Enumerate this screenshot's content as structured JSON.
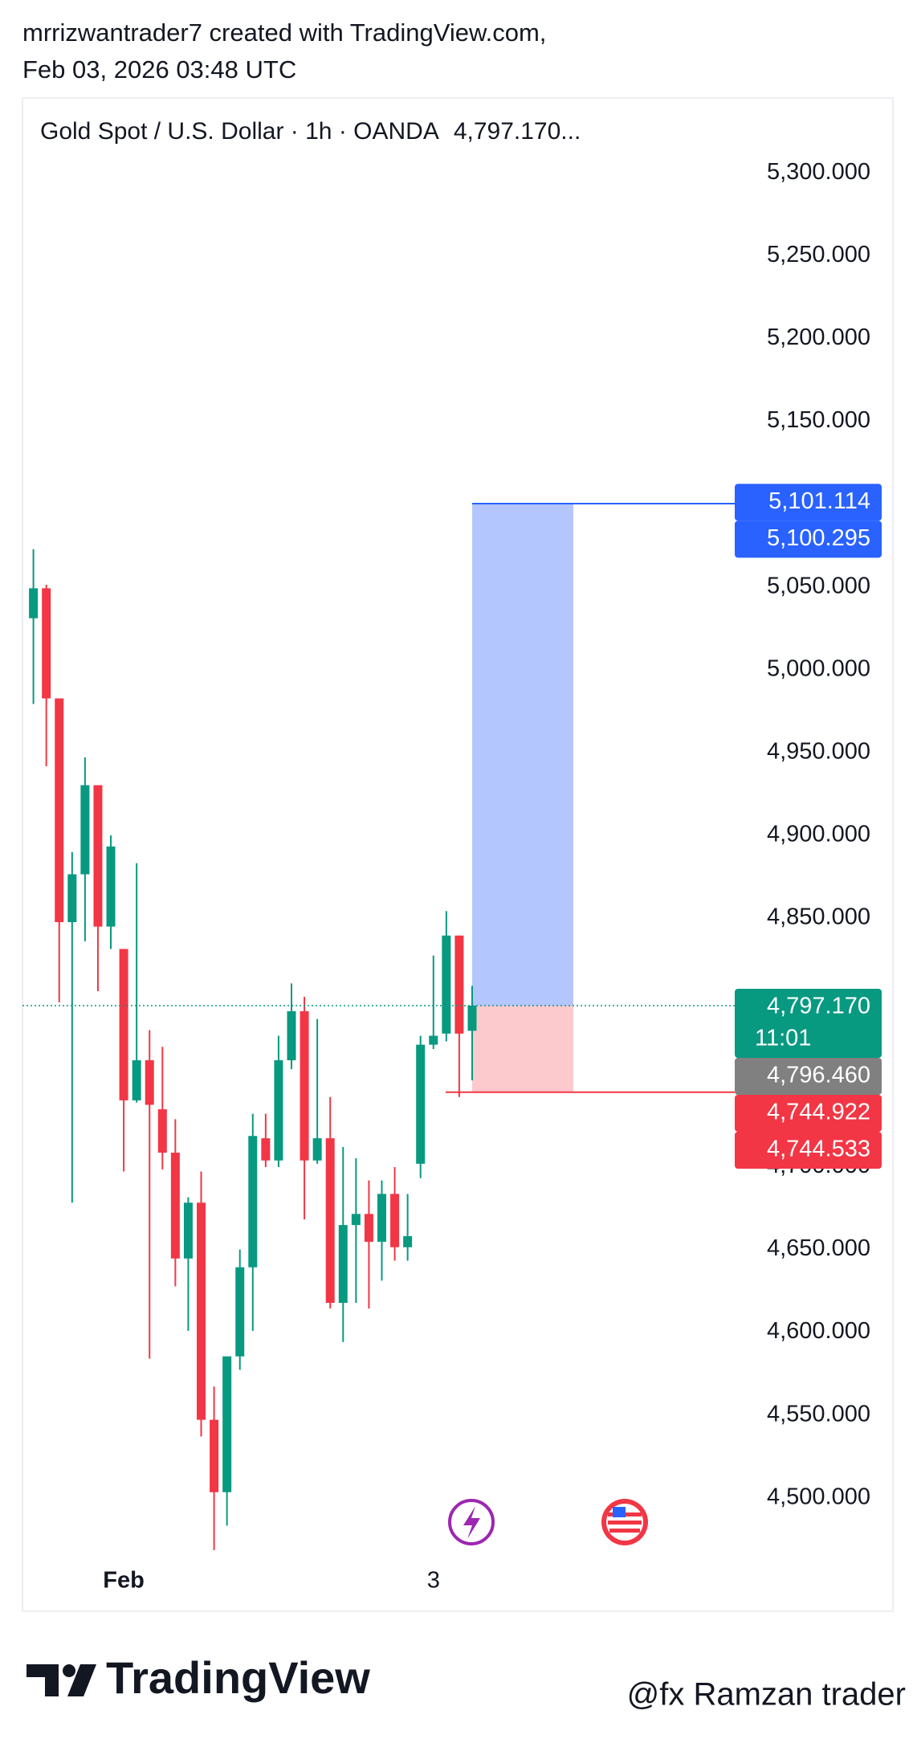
{
  "chart_data": {
    "type": "candlestick",
    "byline": "mrrizwantrader7 created with TradingView.com,",
    "timestamp": "Feb 03, 2026 03:48 UTC",
    "title": "Gold Spot / U.S. Dollar · 1h · OANDA",
    "title_price": "4,797.170...",
    "up_color": "#089981",
    "down_color": "#f23645",
    "categories": [
      null,
      null,
      null,
      null,
      null,
      null,
      null,
      "Feb",
      null,
      null,
      null,
      null,
      null,
      null,
      null,
      null,
      null,
      null,
      null,
      null,
      null,
      null,
      null,
      null,
      null,
      null,
      null,
      null,
      null,
      null,
      null,
      "3",
      null,
      null,
      null
    ],
    "open": [
      5031.1,
      5049.2,
      4982.7,
      4847.6,
      4876.5,
      4930.3,
      4844.9,
      4831.4,
      4740,
      4764.2,
      4734.6,
      4708.4,
      4644.5,
      4678.2,
      4547.1,
      4503.4,
      4585.4,
      4639.2,
      4717.1,
      4703.7,
      4764.2,
      4793.8,
      4703.7,
      4717.1,
      4617.7,
      4664.7,
      4671.4,
      4654.6,
      4683.5,
      4651.3,
      4701.7,
      4773.6,
      4780.3,
      4839.5,
      4782
    ],
    "high": [
      5072.8,
      5051.3,
      4982.7,
      4889.9,
      4947.1,
      4930.3,
      4900,
      4831.4,
      4883.2,
      4782.4,
      4772.3,
      4728.6,
      4681.5,
      4697,
      4567.2,
      4585.4,
      4649.9,
      4731.9,
      4731.9,
      4779,
      4810.6,
      4802.5,
      4789.1,
      4742,
      4711.8,
      4705,
      4691.6,
      4691.6,
      4699.7,
      4683.5,
      4779,
      4827.4,
      4854.3,
      4839.5,
      4809.2
    ],
    "low": [
      4979.3,
      4941.7,
      4799.2,
      4678.2,
      4836.1,
      4805.9,
      4831.4,
      4697,
      4738.7,
      4584,
      4698.3,
      4627.7,
      4600.8,
      4537,
      4468.4,
      4483.2,
      4577.3,
      4600.8,
      4699.7,
      4699.7,
      4758.8,
      4668.1,
      4701.7,
      4614.3,
      4594.1,
      4617.7,
      4614.3,
      4631.1,
      4643.2,
      4643.2,
      4693,
      4771,
      4775.6,
      4742,
      4752.1
    ],
    "close": [
      5049.2,
      4982.7,
      4847.6,
      4876.5,
      4930.3,
      4844.9,
      4893.3,
      4740,
      4764.2,
      4737.3,
      4708.4,
      4644.5,
      4678.2,
      4547.1,
      4503.4,
      4585.4,
      4639.2,
      4718.5,
      4703.7,
      4764.2,
      4793.8,
      4703.7,
      4717.1,
      4617.7,
      4664.7,
      4671.4,
      4654.6,
      4683.5,
      4651.3,
      4658,
      4773.6,
      4779,
      4839.5,
      4780.3,
      4797.17
    ],
    "ylim": [
      4463,
      5337
    ],
    "yticks": [
      {
        "value": 5300,
        "label": "5,300.000"
      },
      {
        "value": 5250,
        "label": "5,250.000"
      },
      {
        "value": 5200,
        "label": "5,200.000"
      },
      {
        "value": 5150,
        "label": "5,150.000"
      },
      {
        "value": 5050,
        "label": "5,050.000"
      },
      {
        "value": 5000,
        "label": "5,000.000"
      },
      {
        "value": 4950,
        "label": "4,950.000"
      },
      {
        "value": 4900,
        "label": "4,900.000"
      },
      {
        "value": 4850,
        "label": "4,850.000"
      },
      {
        "value": 4700,
        "label": "4,700.000"
      },
      {
        "value": 4650,
        "label": "4,650.000"
      },
      {
        "value": 4600,
        "label": "4,600.000"
      },
      {
        "value": 4550,
        "label": "4,550.000"
      },
      {
        "value": 4500,
        "label": "4,500.000"
      }
    ],
    "position": {
      "entry": 4797.17,
      "target": 5100.295,
      "stop": 4744.922,
      "profit_color": "#b3c6fd",
      "loss_color": "#fcc9cd"
    },
    "price_labels": [
      {
        "value": 5101.114,
        "label": "5,101.114",
        "color": "#2962ff"
      },
      {
        "value": 5100.295,
        "label": "5,100.295",
        "color": "#2962ff"
      },
      {
        "value": 4797.17,
        "label": "4,797.170",
        "color": "#089981",
        "countdown": "11:01"
      },
      {
        "value": 4796.46,
        "label": "4,796.460",
        "color": "#808080"
      },
      {
        "value": 4744.922,
        "label": "4,744.922",
        "color": "#f23645"
      },
      {
        "value": 4744.533,
        "label": "4,744.533",
        "color": "#f23645"
      }
    ],
    "brand": "TradingView",
    "watermark": "@fx Ramzan trader"
  }
}
